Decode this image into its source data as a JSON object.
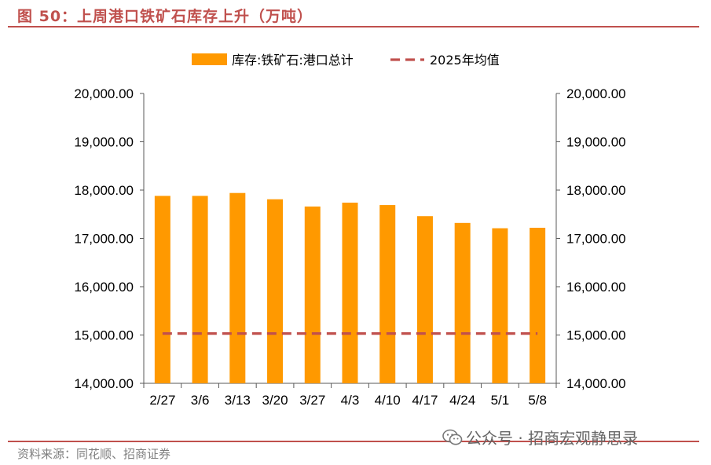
{
  "header": {
    "title": "图 50：上周港口铁矿石库存上升（万吨）"
  },
  "footer": {
    "source": "资料来源：同花顺、招商证券",
    "watermark": "公众号 · 招商宏观静思录"
  },
  "chart_data": {
    "type": "bar",
    "categories": [
      "2/27",
      "3/6",
      "3/13",
      "3/20",
      "3/27",
      "4/3",
      "4/10",
      "4/17",
      "4/24",
      "5/1",
      "5/8"
    ],
    "series": [
      {
        "name": "库存:铁矿石:港口总计",
        "type": "bar",
        "color": "#FF9900",
        "values": [
          17880,
          17880,
          17940,
          17810,
          17660,
          17740,
          17690,
          17460,
          17320,
          17210,
          17220
        ]
      },
      {
        "name": "2025年均值",
        "type": "line",
        "style": "dashed",
        "color": "#C0504D",
        "values": [
          15030,
          15030,
          15030,
          15030,
          15030,
          15030,
          15030,
          15030,
          15030,
          15030,
          15030
        ]
      }
    ],
    "ylim": [
      14000,
      20000
    ],
    "y_ticks": [
      "14,000.00",
      "15,000.00",
      "16,000.00",
      "17,000.00",
      "18,000.00",
      "19,000.00",
      "20,000.00"
    ],
    "secondary_y_ticks": [
      "14,000.00",
      "15,000.00",
      "16,000.00",
      "17,000.00",
      "18,000.00",
      "19,000.00",
      "20,000.00"
    ],
    "grid": false,
    "legend_position": "top-center",
    "xlabel": "",
    "ylabel": ""
  }
}
